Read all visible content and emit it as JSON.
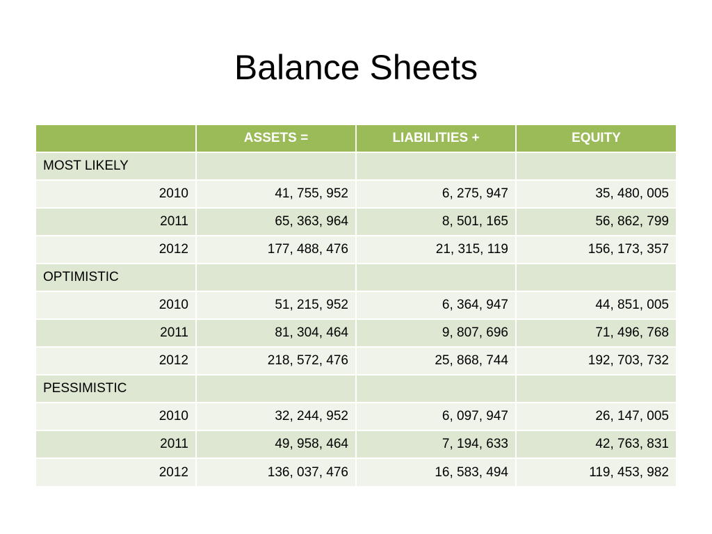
{
  "slide": {
    "title": "Balance Sheets"
  },
  "colors": {
    "header_bg": "#9bbb59",
    "row_dark": "#dee7d1",
    "row_light": "#eff3ea"
  },
  "table": {
    "headers": [
      "",
      "ASSETS =",
      "LIABILITIES +",
      "EQUITY"
    ],
    "groups": [
      {
        "label": "MOST LIKELY",
        "rows": [
          {
            "year": "2010",
            "assets": "41, 755, 952",
            "liabilities": "6, 275, 947",
            "equity": "35, 480, 005"
          },
          {
            "year": "2011",
            "assets": "65, 363, 964",
            "liabilities": "8, 501, 165",
            "equity": "56, 862, 799"
          },
          {
            "year": "2012",
            "assets": "177, 488, 476",
            "liabilities": "21, 315, 119",
            "equity": "156, 173, 357"
          }
        ]
      },
      {
        "label": "OPTIMISTIC",
        "rows": [
          {
            "year": "2010",
            "assets": "51, 215, 952",
            "liabilities": "6, 364, 947",
            "equity": "44, 851, 005"
          },
          {
            "year": "2011",
            "assets": "81, 304, 464",
            "liabilities": "9, 807, 696",
            "equity": "71, 496, 768"
          },
          {
            "year": "2012",
            "assets": "218, 572, 476",
            "liabilities": "25, 868, 744",
            "equity": "192, 703, 732"
          }
        ]
      },
      {
        "label": "PESSIMISTIC",
        "rows": [
          {
            "year": "2010",
            "assets": "32, 244, 952",
            "liabilities": "6, 097, 947",
            "equity": "26, 147, 005"
          },
          {
            "year": "2011",
            "assets": "49, 958, 464",
            "liabilities": "7, 194, 633",
            "equity": "42, 763, 831"
          },
          {
            "year": "2012",
            "assets": "136, 037, 476",
            "liabilities": "16, 583, 494",
            "equity": "119, 453, 982"
          }
        ]
      }
    ]
  }
}
